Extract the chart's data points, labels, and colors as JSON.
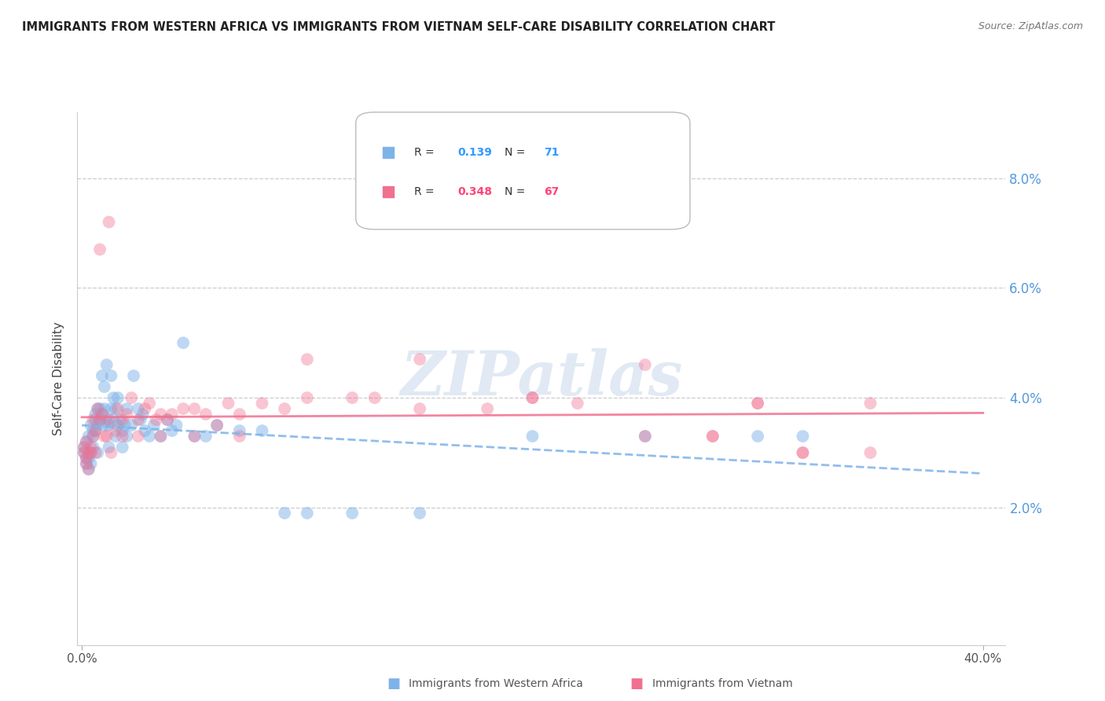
{
  "title": "IMMIGRANTS FROM WESTERN AFRICA VS IMMIGRANTS FROM VIETNAM SELF-CARE DISABILITY CORRELATION CHART",
  "source": "Source: ZipAtlas.com",
  "ylabel": "Self-Care Disability",
  "ytick_labels": [
    "2.0%",
    "4.0%",
    "6.0%",
    "8.0%"
  ],
  "ytick_values": [
    0.02,
    0.04,
    0.06,
    0.08
  ],
  "xlim": [
    -0.002,
    0.41
  ],
  "ylim": [
    -0.005,
    0.092
  ],
  "legend_label1": "Immigrants from Western Africa",
  "legend_label2": "Immigrants from Vietnam",
  "R1": "0.139",
  "N1": "71",
  "R2": "0.348",
  "N2": "67",
  "color_blue": "#7EB3E8",
  "color_pink": "#F07090",
  "color_blue_text": "#3399FF",
  "color_pink_text": "#FF4477",
  "watermark": "ZIPatlas",
  "blue_x": [
    0.001,
    0.001,
    0.002,
    0.002,
    0.002,
    0.003,
    0.003,
    0.003,
    0.004,
    0.004,
    0.004,
    0.005,
    0.005,
    0.005,
    0.006,
    0.006,
    0.006,
    0.007,
    0.007,
    0.007,
    0.008,
    0.008,
    0.009,
    0.009,
    0.01,
    0.01,
    0.01,
    0.011,
    0.011,
    0.012,
    0.012,
    0.013,
    0.013,
    0.014,
    0.014,
    0.015,
    0.015,
    0.016,
    0.016,
    0.017,
    0.018,
    0.018,
    0.019,
    0.02,
    0.02,
    0.022,
    0.023,
    0.025,
    0.026,
    0.027,
    0.028,
    0.03,
    0.032,
    0.035,
    0.038,
    0.04,
    0.042,
    0.045,
    0.05,
    0.055,
    0.06,
    0.07,
    0.08,
    0.09,
    0.1,
    0.12,
    0.15,
    0.2,
    0.25,
    0.3,
    0.32
  ],
  "blue_y": [
    0.03,
    0.031,
    0.029,
    0.028,
    0.032,
    0.027,
    0.033,
    0.029,
    0.03,
    0.028,
    0.035,
    0.031,
    0.034,
    0.033,
    0.037,
    0.036,
    0.034,
    0.038,
    0.035,
    0.03,
    0.036,
    0.038,
    0.044,
    0.037,
    0.035,
    0.042,
    0.038,
    0.036,
    0.046,
    0.031,
    0.035,
    0.038,
    0.044,
    0.036,
    0.04,
    0.033,
    0.038,
    0.035,
    0.04,
    0.036,
    0.031,
    0.034,
    0.035,
    0.038,
    0.033,
    0.035,
    0.044,
    0.038,
    0.036,
    0.037,
    0.034,
    0.033,
    0.035,
    0.033,
    0.036,
    0.034,
    0.035,
    0.05,
    0.033,
    0.033,
    0.035,
    0.034,
    0.034,
    0.019,
    0.019,
    0.019,
    0.019,
    0.033,
    0.033,
    0.033,
    0.033
  ],
  "pink_x": [
    0.001,
    0.001,
    0.002,
    0.002,
    0.002,
    0.003,
    0.003,
    0.004,
    0.004,
    0.005,
    0.005,
    0.006,
    0.006,
    0.007,
    0.008,
    0.009,
    0.01,
    0.011,
    0.012,
    0.013,
    0.015,
    0.016,
    0.018,
    0.02,
    0.022,
    0.025,
    0.028,
    0.03,
    0.033,
    0.035,
    0.038,
    0.04,
    0.045,
    0.05,
    0.055,
    0.06,
    0.065,
    0.07,
    0.08,
    0.09,
    0.1,
    0.12,
    0.13,
    0.15,
    0.18,
    0.2,
    0.22,
    0.25,
    0.28,
    0.3,
    0.32,
    0.35,
    0.008,
    0.012,
    0.018,
    0.025,
    0.035,
    0.05,
    0.07,
    0.1,
    0.15,
    0.2,
    0.25,
    0.28,
    0.3,
    0.32,
    0.35
  ],
  "pink_y": [
    0.03,
    0.031,
    0.029,
    0.028,
    0.032,
    0.027,
    0.03,
    0.031,
    0.03,
    0.033,
    0.036,
    0.03,
    0.034,
    0.038,
    0.036,
    0.037,
    0.033,
    0.033,
    0.036,
    0.03,
    0.034,
    0.038,
    0.036,
    0.037,
    0.04,
    0.036,
    0.038,
    0.039,
    0.036,
    0.037,
    0.036,
    0.037,
    0.038,
    0.038,
    0.037,
    0.035,
    0.039,
    0.037,
    0.039,
    0.038,
    0.04,
    0.04,
    0.04,
    0.038,
    0.038,
    0.04,
    0.039,
    0.046,
    0.033,
    0.039,
    0.03,
    0.039,
    0.067,
    0.072,
    0.033,
    0.033,
    0.033,
    0.033,
    0.033,
    0.047,
    0.047,
    0.04,
    0.033,
    0.033,
    0.039,
    0.03,
    0.03
  ]
}
